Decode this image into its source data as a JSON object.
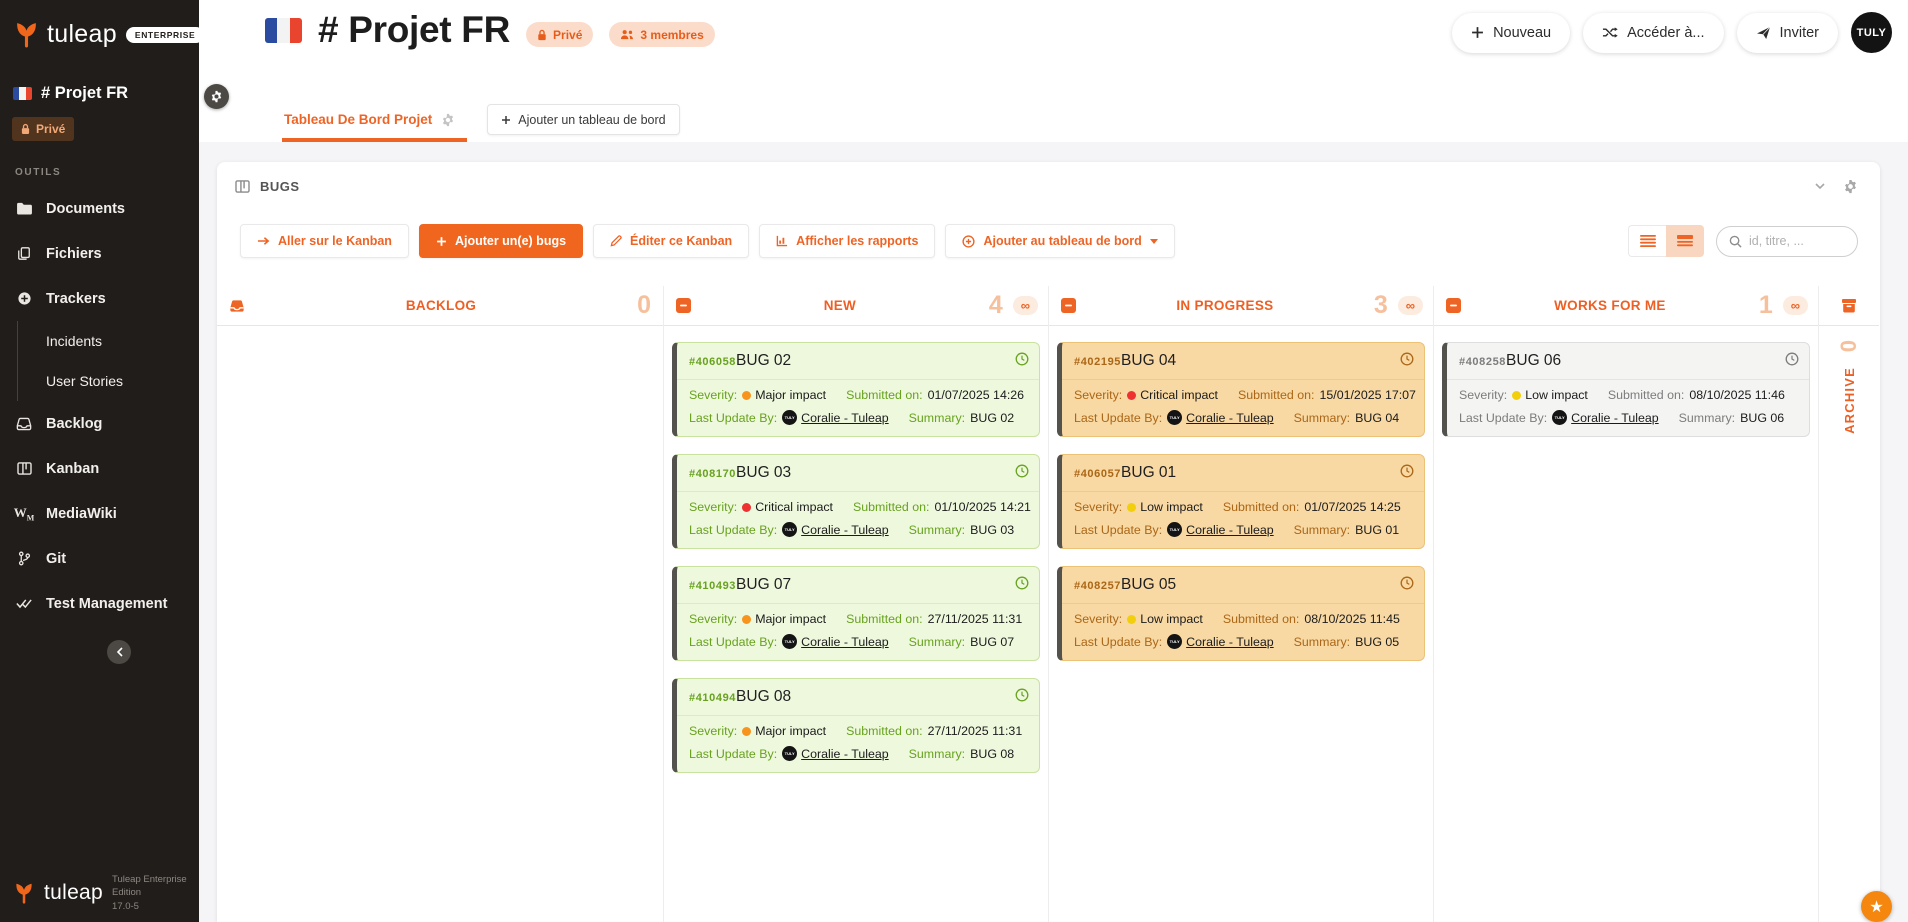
{
  "sidebar": {
    "logo_text": "tuleap",
    "edition_badge": "ENTERPRISE",
    "project": {
      "name": "# Projet FR",
      "privacy": "Privé"
    },
    "tools_label": "OUTILS",
    "items": [
      {
        "label": "Documents",
        "icon": "folder-icon"
      },
      {
        "label": "Fichiers",
        "icon": "copy-icon"
      },
      {
        "label": "Trackers",
        "icon": "tracker-icon"
      },
      {
        "label": "Incidents",
        "sub": true
      },
      {
        "label": "User Stories",
        "sub": true
      },
      {
        "label": "Backlog",
        "icon": "inbox-icon"
      },
      {
        "label": "Kanban",
        "icon": "kanban-icon"
      },
      {
        "label": "MediaWiki",
        "icon": "mediawiki-icon"
      },
      {
        "label": "Git",
        "icon": "git-branch-icon"
      },
      {
        "label": "Test Management",
        "icon": "double-check-icon"
      }
    ],
    "footer": {
      "logo_text": "tuleap",
      "edition": "Tuleap Enterprise Edition",
      "version": "17.0-5"
    }
  },
  "header": {
    "title": "# Projet FR",
    "privacy_badge": "Privé",
    "members_badge": "3 membres",
    "new_button": "Nouveau",
    "access_button": "Accéder à...",
    "invite_button": "Inviter",
    "avatar": "TULY"
  },
  "tabs": {
    "active_tab": "Tableau De Bord Projet",
    "add_tab_button": "Ajouter un tableau de bord"
  },
  "panel": {
    "title": "BUGS",
    "toolbar": {
      "go_kanban": "Aller sur le Kanban",
      "add_item": "Ajouter un(e) bugs",
      "edit": "Éditer ce Kanban",
      "reports": "Afficher les rapports",
      "add_dashboard": "Ajouter au tableau de bord"
    },
    "search_placeholder": "id, titre, ..."
  },
  "board": {
    "field_labels": {
      "severity": "Severity:",
      "submitted": "Submitted on:",
      "last_update": "Last Update By:",
      "summary": "Summary:"
    },
    "columns": [
      {
        "name": "BACKLOG",
        "count": "0",
        "icon": "inbox",
        "theme": "green",
        "cards": []
      },
      {
        "name": "NEW",
        "count": "4",
        "wip_limit": "∞",
        "icon": "minus-square",
        "theme": "green",
        "cards": [
          {
            "id": "#406058",
            "title": "BUG 02",
            "severity": "Major impact",
            "severity_color": "#f7941d",
            "submitted_on": "01/07/2025 14:26",
            "last_update_by": "Coralie - Tuleap",
            "updater_avatar": "TULY",
            "summary": "BUG 02"
          },
          {
            "id": "#408170",
            "title": "BUG 03",
            "severity": "Critical impact",
            "severity_color": "#ee3232",
            "submitted_on": "01/10/2025 14:21",
            "last_update_by": "Coralie - Tuleap",
            "updater_avatar": "TULY",
            "summary": "BUG 03"
          },
          {
            "id": "#410493",
            "title": "BUG 07",
            "severity": "Major impact",
            "severity_color": "#f7941d",
            "submitted_on": "27/11/2025 11:31",
            "last_update_by": "Coralie - Tuleap",
            "updater_avatar": "TULY",
            "summary": "BUG 07"
          },
          {
            "id": "#410494",
            "title": "BUG 08",
            "severity": "Major impact",
            "severity_color": "#f7941d",
            "submitted_on": "27/11/2025 11:31",
            "last_update_by": "Coralie - Tuleap",
            "updater_avatar": "TULY",
            "summary": "BUG 08"
          }
        ]
      },
      {
        "name": "IN PROGRESS",
        "count": "3",
        "wip_limit": "∞",
        "icon": "minus-square",
        "theme": "orange",
        "cards": [
          {
            "id": "#402195",
            "title": "BUG 04",
            "severity": "Critical impact",
            "severity_color": "#ee3232",
            "submitted_on": "15/01/2025 17:07",
            "last_update_by": "Coralie - Tuleap",
            "updater_avatar": "TULY",
            "summary": "BUG 04"
          },
          {
            "id": "#406057",
            "title": "BUG 01",
            "severity": "Low impact",
            "severity_color": "#f2cf0c",
            "submitted_on": "01/07/2025 14:25",
            "last_update_by": "Coralie - Tuleap",
            "updater_avatar": "TULY",
            "summary": "BUG 01"
          },
          {
            "id": "#408257",
            "title": "BUG 05",
            "severity": "Low impact",
            "severity_color": "#f2cf0c",
            "submitted_on": "08/10/2025 11:45",
            "last_update_by": "Coralie - Tuleap",
            "updater_avatar": "TULY",
            "summary": "BUG 05"
          }
        ]
      },
      {
        "name": "WORKS FOR ME",
        "count": "1",
        "wip_limit": "∞",
        "icon": "minus-square",
        "theme": "grey",
        "cards": [
          {
            "id": "#408258",
            "title": "BUG 06",
            "severity": "Low impact",
            "severity_color": "#f2cf0c",
            "submitted_on": "08/10/2025 11:46",
            "last_update_by": "Coralie - Tuleap",
            "updater_avatar": "TULY",
            "summary": "BUG 06"
          }
        ]
      }
    ],
    "archive_column": {
      "name": "ARCHIVE",
      "count": "0"
    },
    "colors": {
      "accent": "#ee6425",
      "major": "#f7941d",
      "critical": "#ee3232",
      "low": "#f2cf0c"
    }
  },
  "floating": {
    "star_button": "★"
  }
}
